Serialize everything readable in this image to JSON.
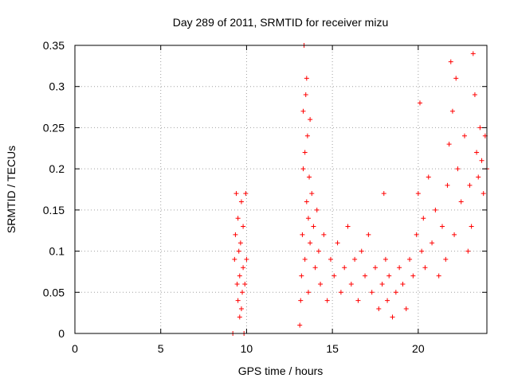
{
  "chart_data": {
    "type": "scatter",
    "title": "Day 289 of 2011, SRMTID for receiver mizu",
    "xlabel": "GPS time / hours",
    "ylabel": "SRMTID / TECUs",
    "xlim": [
      0,
      24
    ],
    "ylim": [
      0,
      0.35
    ],
    "x_ticks": [
      0,
      5,
      10,
      15,
      20
    ],
    "x_tick_labels": [
      "0",
      "5",
      "10",
      "15",
      "20"
    ],
    "y_ticks": [
      0,
      0.05,
      0.1,
      0.15,
      0.2,
      0.25,
      0.3,
      0.35
    ],
    "y_tick_labels": [
      "0",
      "0.05",
      "0.1",
      "0.15",
      "0.2",
      "0.25",
      "0.3",
      "0.35"
    ],
    "grid": true,
    "marker": "+",
    "series": [
      {
        "name": "SRMTID",
        "color": "#ff0000",
        "x": [
          9.2,
          9.3,
          9.35,
          9.4,
          9.45,
          9.5,
          9.5,
          9.55,
          9.6,
          9.6,
          9.65,
          9.7,
          9.7,
          9.75,
          9.8,
          9.8,
          9.85,
          9.9,
          9.95,
          10.0,
          13.1,
          13.15,
          13.2,
          13.25,
          13.3,
          13.3,
          13.35,
          13.4,
          13.4,
          13.45,
          13.5,
          13.5,
          13.55,
          13.6,
          13.6,
          13.65,
          13.7,
          13.7,
          13.8,
          13.9,
          14.0,
          14.1,
          14.2,
          14.3,
          14.5,
          14.7,
          14.9,
          15.1,
          15.3,
          15.5,
          15.7,
          15.9,
          16.1,
          16.3,
          16.5,
          16.7,
          16.9,
          17.1,
          17.3,
          17.5,
          17.7,
          17.9,
          18.0,
          18.1,
          18.2,
          18.3,
          18.5,
          18.7,
          18.9,
          19.1,
          19.3,
          19.5,
          19.7,
          19.9,
          20.0,
          20.1,
          20.2,
          20.3,
          20.4,
          20.6,
          20.8,
          21.0,
          21.2,
          21.4,
          21.6,
          21.7,
          21.8,
          21.9,
          22.0,
          22.1,
          22.2,
          22.3,
          22.5,
          22.7,
          22.9,
          23.0,
          23.1,
          23.2,
          23.3,
          23.4,
          23.5,
          23.6,
          23.7,
          23.8,
          23.9,
          24.0
        ],
        "y": [
          0.0,
          0.09,
          0.12,
          0.17,
          0.06,
          0.14,
          0.04,
          0.1,
          0.02,
          0.07,
          0.11,
          0.03,
          0.16,
          0.05,
          0.08,
          0.13,
          0.0,
          0.06,
          0.17,
          0.09,
          0.01,
          0.04,
          0.07,
          0.12,
          0.2,
          0.27,
          0.35,
          0.22,
          0.09,
          0.29,
          0.31,
          0.16,
          0.24,
          0.14,
          0.05,
          0.19,
          0.26,
          0.11,
          0.17,
          0.13,
          0.08,
          0.15,
          0.1,
          0.06,
          0.12,
          0.04,
          0.09,
          0.07,
          0.11,
          0.05,
          0.08,
          0.13,
          0.06,
          0.09,
          0.04,
          0.1,
          0.07,
          0.12,
          0.05,
          0.08,
          0.03,
          0.06,
          0.17,
          0.09,
          0.04,
          0.07,
          0.02,
          0.05,
          0.08,
          0.06,
          0.03,
          0.09,
          0.07,
          0.12,
          0.17,
          0.28,
          0.1,
          0.14,
          0.08,
          0.19,
          0.11,
          0.15,
          0.07,
          0.13,
          0.09,
          0.18,
          0.23,
          0.33,
          0.27,
          0.12,
          0.31,
          0.2,
          0.16,
          0.24,
          0.1,
          0.18,
          0.13,
          0.34,
          0.29,
          0.22,
          0.19,
          0.25,
          0.21,
          0.17,
          0.24,
          0.2
        ]
      }
    ]
  }
}
